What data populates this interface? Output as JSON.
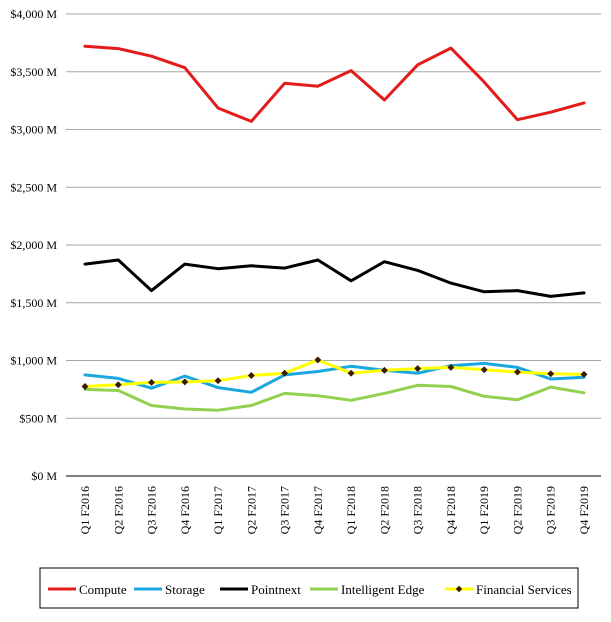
{
  "chart_data": {
    "type": "line",
    "title": "",
    "xlabel": "",
    "ylabel": "",
    "categories": [
      "Q1 F2016",
      "Q2 F2016",
      "Q3 F2016",
      "Q4 F2016",
      "Q1 F2017",
      "Q2 F2017",
      "Q3 F2017",
      "Q4 F2017",
      "Q1 F2018",
      "Q2 F2018",
      "Q3 F2018",
      "Q4 F2018",
      "Q1 F2019",
      "Q2 F2019",
      "Q3 F2019",
      "Q4 F2019"
    ],
    "ylim": [
      0,
      4000
    ],
    "yticks": [
      0,
      500,
      1000,
      1500,
      2000,
      2500,
      3000,
      3500,
      4000
    ],
    "ytick_labels": [
      "$0 M",
      "$500 M",
      "$1,000 M",
      "$1,500 M",
      "$2,000 M",
      "$2,500 M",
      "$3,000 M",
      "$3,500 M",
      "$4,000 M"
    ],
    "grid": "horizontal",
    "legend_position": "bottom",
    "series": [
      {
        "name": "Compute",
        "color": "#e31b1b",
        "marker": "none",
        "values": [
          3720,
          3700,
          3635,
          3535,
          3185,
          3070,
          3400,
          3375,
          3510,
          3255,
          3560,
          3705,
          3410,
          3085,
          3150,
          3230
        ]
      },
      {
        "name": "Storage",
        "color": "#1aa7df",
        "marker": "none",
        "values": [
          875,
          845,
          760,
          865,
          765,
          725,
          875,
          905,
          950,
          915,
          890,
          955,
          975,
          940,
          840,
          855
        ]
      },
      {
        "name": "Pointnext",
        "color": "#000000",
        "marker": "none",
        "values": [
          1835,
          1870,
          1605,
          1835,
          1795,
          1820,
          1800,
          1870,
          1690,
          1855,
          1780,
          1670,
          1595,
          1605,
          1555,
          1585
        ]
      },
      {
        "name": "Intelligent Edge",
        "color": "#92d050",
        "marker": "none",
        "values": [
          750,
          740,
          610,
          580,
          570,
          610,
          715,
          695,
          655,
          715,
          785,
          775,
          690,
          660,
          770,
          720
        ]
      },
      {
        "name": "Financial Services",
        "color": "#ffff00",
        "marker": "diamond",
        "marker_color": "#3a1a00",
        "values": [
          775,
          790,
          810,
          815,
          825,
          870,
          890,
          1005,
          890,
          915,
          930,
          940,
          920,
          900,
          885,
          880
        ]
      }
    ]
  }
}
